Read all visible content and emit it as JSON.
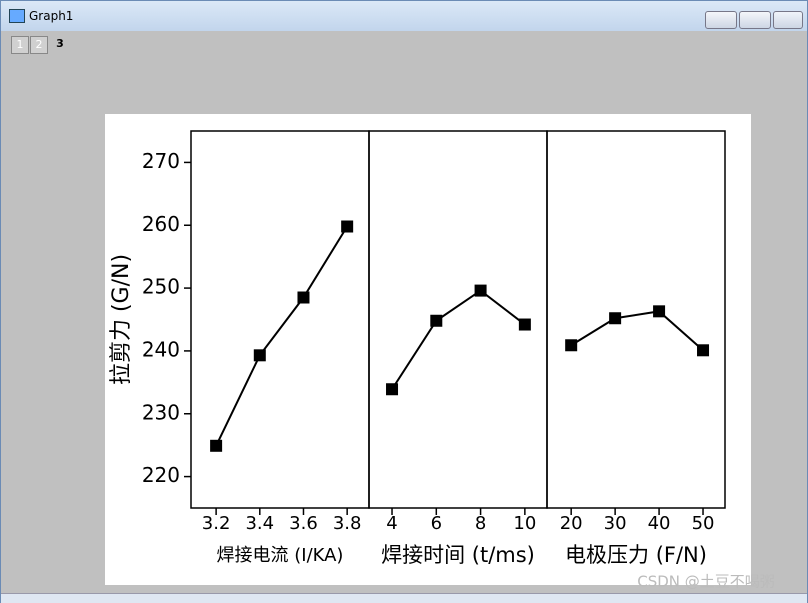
{
  "window": {
    "title": "Graph1",
    "tabs": [
      "1",
      "2",
      "3"
    ],
    "watermark": "CSDN @土豆不喝粥"
  },
  "chart_data": [
    {
      "type": "line",
      "y_label": "拉剪力 (G/N)",
      "x_label": "焊接电流 (I/KA)",
      "x": [
        3.2,
        3.4,
        3.6,
        3.8
      ],
      "values": [
        224.9,
        239.3,
        248.5,
        259.8
      ],
      "color": "#000000",
      "xlim": [
        3.085,
        3.9
      ],
      "xticks": [
        3.2,
        3.4,
        3.6,
        3.8
      ],
      "ylim": [
        215,
        275
      ],
      "yticks": [
        220,
        230,
        240,
        250,
        260,
        270
      ]
    },
    {
      "type": "line",
      "x_label": "焊接时间 (t/ms)",
      "x": [
        4,
        6,
        8,
        10
      ],
      "values": [
        233.9,
        244.8,
        249.6,
        244.2
      ],
      "color": "#000000",
      "xlim": [
        2.96,
        11
      ],
      "xticks": [
        4,
        6,
        8,
        10
      ]
    },
    {
      "type": "line",
      "x_label": "电极压力 (F/N)",
      "x": [
        20,
        30,
        40,
        50
      ],
      "values": [
        240.9,
        245.2,
        246.3,
        240.1
      ],
      "color": "#000000",
      "xlim": [
        14.5,
        55
      ],
      "xticks": [
        20,
        30,
        40,
        50
      ]
    }
  ]
}
